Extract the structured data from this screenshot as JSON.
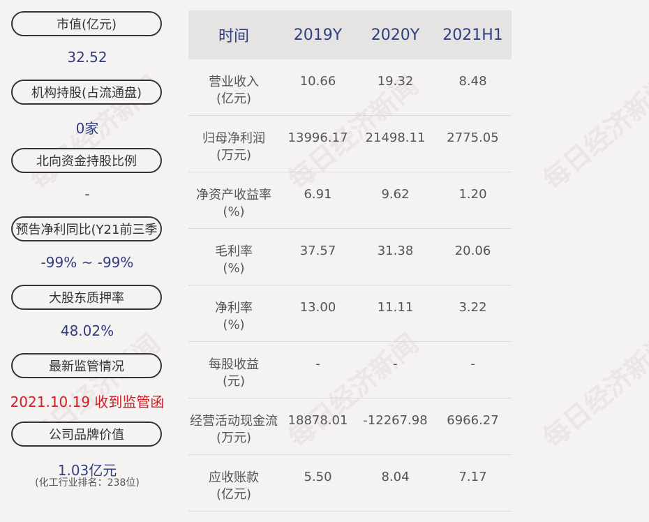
{
  "left": {
    "items": [
      {
        "label": "市值(亿元)",
        "value": "32.52"
      },
      {
        "label": "机构持股(占流通盘)",
        "value": "0家"
      },
      {
        "label": "北向资金持股比例",
        "value": "-"
      },
      {
        "label": "预告净利同比(Y21前三季",
        "value": "-99% ~ -99%"
      },
      {
        "label": "大股东质押率",
        "value": "48.02%"
      },
      {
        "label": "最新监管情况",
        "value": "2021.10.19 收到监管函"
      },
      {
        "label": "公司品牌价值",
        "value": "1.03亿元",
        "sub": "(化工行业排名：238位)"
      }
    ]
  },
  "table": {
    "headers": [
      "时间",
      "2019Y",
      "2020Y",
      "2021H1"
    ],
    "rows": [
      {
        "name": "营业收入",
        "unit": "(亿元)",
        "values": [
          "10.66",
          "19.32",
          "8.48"
        ]
      },
      {
        "name": "归母净利润",
        "unit": "(万元)",
        "values": [
          "13996.17",
          "21498.11",
          "2775.05"
        ]
      },
      {
        "name": "净资产收益率",
        "unit": "(%)",
        "values": [
          "6.91",
          "9.62",
          "1.20"
        ]
      },
      {
        "name": "毛利率",
        "unit": "(%)",
        "values": [
          "37.57",
          "31.38",
          "20.06"
        ]
      },
      {
        "name": "净利率",
        "unit": "(%)",
        "values": [
          "13.00",
          "11.11",
          "3.22"
        ]
      },
      {
        "name": "每股收益",
        "unit": "(元)",
        "values": [
          "-",
          "-",
          "-"
        ]
      },
      {
        "name": "经营活动现金流",
        "unit": "(万元)",
        "values": [
          "18878.01",
          "-12267.98",
          "6966.27"
        ]
      },
      {
        "name": "应收账款",
        "unit": "(亿元)",
        "values": [
          "5.50",
          "8.04",
          "7.17"
        ]
      }
    ]
  },
  "watermark": "每日经济新闻",
  "colors": {
    "accent": "#2f3f80",
    "alert": "#d01c23",
    "background": "#f5f2f2",
    "header_bg": "#e6e3e3"
  }
}
